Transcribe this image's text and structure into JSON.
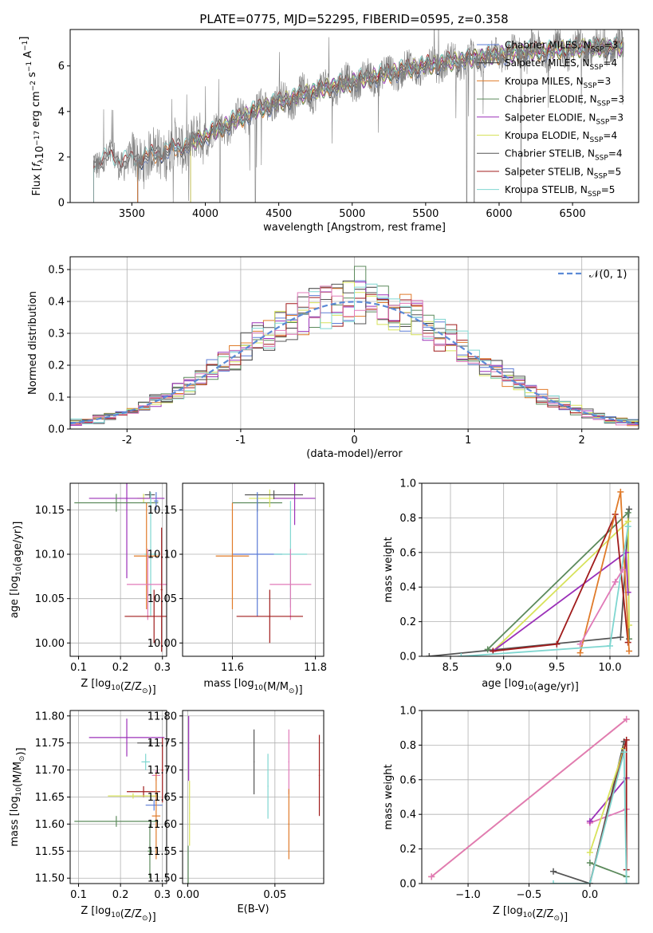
{
  "title": "PLATE=0775, MJD=52295, FIBERID=0595, z=0.358",
  "colors": {
    "chabrier_miles": "#5b7bd6",
    "salpeter_miles": "#3a3a3a",
    "kroupa_miles": "#e07b2a",
    "chabrier_elodie": "#5c8a5c",
    "salpeter_elodie": "#9b30b8",
    "kroupa_elodie": "#d7e25a",
    "chabrier_stelib": "#555555",
    "salpeter_stelib": "#a01b1b",
    "kroupa_stelib": "#7fd6d0",
    "pink": "#e07ab8",
    "data": "#808080"
  },
  "chart_data": [
    {
      "id": "spectrum",
      "type": "line",
      "xlabel": "wavelength [Angstrom, rest frame]",
      "ylabel": "Flux [f_λ 10^-17 erg cm^-2 s^-1 A^-1]",
      "xlim": [
        3080,
        6950
      ],
      "ylim": [
        0,
        7.6
      ],
      "xticks": [
        3500,
        4000,
        4500,
        5000,
        5500,
        6000,
        6500
      ],
      "yticks": [
        0,
        2,
        4,
        6
      ],
      "legend_position": "top-right",
      "legend": [
        {
          "label": "Chabrier MILES, N_SSP=3",
          "color_key": "chabrier_miles"
        },
        {
          "label": "Salpeter MILES, N_SSP=4",
          "color_key": "salpeter_miles"
        },
        {
          "label": "Kroupa MILES, N_SSP=3",
          "color_key": "kroupa_miles"
        },
        {
          "label": "Chabrier ELODIE, N_SSP=3",
          "color_key": "chabrier_elodie"
        },
        {
          "label": "Salpeter ELODIE, N_SSP=3",
          "color_key": "salpeter_elodie"
        },
        {
          "label": "Kroupa ELODIE, N_SSP=4",
          "color_key": "kroupa_elodie"
        },
        {
          "label": "Chabrier STELIB, N_SSP=4",
          "color_key": "chabrier_stelib"
        },
        {
          "label": "Salpeter STELIB, N_SSP=5",
          "color_key": "salpeter_stelib"
        },
        {
          "label": "Kroupa STELIB, N_SSP=5",
          "color_key": "kroupa_stelib"
        }
      ],
      "continuum": [
        [
          3240,
          1.7
        ],
        [
          3300,
          1.9
        ],
        [
          3400,
          1.85
        ],
        [
          3500,
          1.8
        ],
        [
          3700,
          2.2
        ],
        [
          3900,
          2.6
        ],
        [
          4000,
          2.9
        ],
        [
          4200,
          3.6
        ],
        [
          4400,
          4.2
        ],
        [
          4600,
          4.6
        ],
        [
          4800,
          5.0
        ],
        [
          5000,
          5.3
        ],
        [
          5200,
          5.6
        ],
        [
          5400,
          5.9
        ],
        [
          5600,
          6.1
        ],
        [
          5800,
          6.3
        ],
        [
          6000,
          6.5
        ],
        [
          6200,
          6.6
        ],
        [
          6400,
          6.7
        ],
        [
          6600,
          6.8
        ],
        [
          6800,
          6.8
        ]
      ],
      "model_ranges": [
        {
          "color_key": "chabrier_miles",
          "start": 3540
        },
        {
          "color_key": "salpeter_miles",
          "start": 3540
        },
        {
          "color_key": "kroupa_miles",
          "start": 3540
        },
        {
          "color_key": "chabrier_elodie",
          "start": 3900
        },
        {
          "color_key": "salpeter_elodie",
          "start": 3900
        },
        {
          "color_key": "kroupa_elodie",
          "start": 3900
        },
        {
          "color_key": "chabrier_stelib",
          "start": 3240
        },
        {
          "color_key": "salpeter_stelib",
          "start": 3240
        },
        {
          "color_key": "kroupa_stelib",
          "start": 3240
        }
      ],
      "deep_absorptions": [
        4100,
        4340,
        5780,
        5830,
        6150
      ]
    },
    {
      "id": "residuals",
      "type": "histogram",
      "xlabel": "(data-model)/error",
      "ylabel": "Normed distribution",
      "xlim": [
        -2.5,
        2.5
      ],
      "ylim": [
        0,
        0.54
      ],
      "xticks": [
        -2,
        -1,
        0,
        1,
        2
      ],
      "yticks": [
        0,
        0.1,
        0.2,
        0.3,
        0.4,
        0.5
      ],
      "grid": true,
      "legend_position": "top-right",
      "reference_label": "𝒩(0, 1)",
      "bin_width": 0.1,
      "bin_start": -2.5
    },
    {
      "id": "age_vs_Z",
      "type": "errorbar",
      "xlabel": "Z [log10(Z/Z⊙)]",
      "ylabel": "age [log10(age/yr)]",
      "xlim": [
        0.08,
        0.31
      ],
      "ylim": [
        9.985,
        10.18
      ],
      "xticks": [
        0.1,
        0.2,
        0.3
      ],
      "yticks": [
        10.0,
        10.05,
        10.1,
        10.15
      ],
      "grid": true,
      "points": [
        {
          "x": 0.255,
          "xerr": 0.015,
          "y": 10.163,
          "yerr": 0.005,
          "color_key": "kroupa_elodie"
        },
        {
          "x": 0.27,
          "xerr": 0.012,
          "y": 10.167,
          "yerr": 0.004,
          "color_key": "chabrier_stelib"
        },
        {
          "x": 0.215,
          "xerr": 0.09,
          "y": 10.163,
          "yerr": 0.09,
          "color_key": "salpeter_elodie"
        },
        {
          "x": 0.19,
          "xerr": 0.1,
          "y": 10.158,
          "yerr": 0.01,
          "color_key": "chabrier_elodie"
        },
        {
          "x": 0.272,
          "xerr": 0.015,
          "y": 10.1,
          "yerr": 0.07,
          "color_key": "kroupa_stelib"
        },
        {
          "x": 0.262,
          "xerr": 0.03,
          "y": 10.098,
          "yerr": 0.06,
          "color_key": "kroupa_miles"
        },
        {
          "x": 0.265,
          "xerr": 0.05,
          "y": 10.066,
          "yerr": 0.04,
          "color_key": "pink"
        },
        {
          "x": 0.28,
          "xerr": 0.07,
          "y": 10.03,
          "yerr": 0.03,
          "color_key": "salpeter_stelib"
        },
        {
          "x": 0.285,
          "xerr": 0.005,
          "y": 10.16,
          "yerr": 0.01,
          "color_key": "chabrier_miles"
        },
        {
          "x": 0.298,
          "xerr": 0.002,
          "y": 10.06,
          "yerr": 0.07,
          "color_key": "salpeter_stelib"
        }
      ]
    },
    {
      "id": "age_vs_mass",
      "type": "errorbar",
      "xlabel": "mass [log10(M/M⊙)]",
      "ylabel": "",
      "xlim": [
        11.48,
        11.82
      ],
      "ylim": [
        9.985,
        10.18
      ],
      "xticks": [
        11.6,
        11.8
      ],
      "yticks": [
        10.0,
        10.05,
        10.1,
        10.15
      ],
      "grid": true,
      "points": [
        {
          "x": 11.66,
          "xerr": 0.06,
          "y": 10.158,
          "yerr": 0.01,
          "color_key": "chabrier_elodie"
        },
        {
          "x": 11.69,
          "xerr": 0.05,
          "y": 10.163,
          "yerr": 0.01,
          "color_key": "kroupa_elodie"
        },
        {
          "x": 11.75,
          "xerr": 0.05,
          "y": 10.163,
          "yerr": 0.03,
          "color_key": "salpeter_elodie"
        },
        {
          "x": 11.7,
          "xerr": 0.07,
          "y": 10.167,
          "yerr": 0.005,
          "color_key": "chabrier_stelib"
        },
        {
          "x": 11.66,
          "xerr": 0.06,
          "y": 10.1,
          "yerr": 0.07,
          "color_key": "chabrier_miles"
        },
        {
          "x": 11.6,
          "xerr": 0.04,
          "y": 10.098,
          "yerr": 0.06,
          "color_key": "kroupa_miles"
        },
        {
          "x": 11.74,
          "xerr": 0.04,
          "y": 10.1,
          "yerr": 0.06,
          "color_key": "kroupa_stelib"
        },
        {
          "x": 11.74,
          "xerr": 0.05,
          "y": 10.066,
          "yerr": 0.04,
          "color_key": "pink"
        },
        {
          "x": 11.69,
          "xerr": 0.08,
          "y": 10.03,
          "yerr": 0.03,
          "color_key": "salpeter_stelib"
        }
      ]
    },
    {
      "id": "weight_vs_age",
      "type": "line",
      "xlabel": "age [log10(age/yr)]",
      "ylabel": "mass weight",
      "xlim": [
        8.23,
        10.27
      ],
      "ylim": [
        0,
        1
      ],
      "xticks": [
        8.5,
        9.0,
        9.5,
        10.0
      ],
      "yticks": [
        0,
        0.2,
        0.4,
        0.6,
        0.8,
        1.0
      ],
      "grid": true,
      "series": [
        {
          "color_key": "chabrier_stelib",
          "x": [
            8.3,
            10.1,
            10.18
          ],
          "y": [
            0.0,
            0.11,
            0.85
          ]
        },
        {
          "color_key": "chabrier_elodie",
          "x": [
            8.85,
            10.17,
            10.18
          ],
          "y": [
            0.04,
            0.83,
            0.1
          ]
        },
        {
          "color_key": "kroupa_elodie",
          "x": [
            8.9,
            10.17,
            10.18
          ],
          "y": [
            0.03,
            0.78,
            0.18
          ]
        },
        {
          "color_key": "salpeter_elodie",
          "x": [
            8.9,
            10.15,
            10.17
          ],
          "y": [
            0.03,
            0.6,
            0.37
          ]
        },
        {
          "color_key": "salpeter_stelib",
          "x": [
            8.9,
            9.5,
            10.05,
            10.17
          ],
          "y": [
            0.03,
            0.07,
            0.82,
            0.08
          ]
        },
        {
          "color_key": "kroupa_miles",
          "x": [
            9.72,
            10.1,
            10.18
          ],
          "y": [
            0.02,
            0.95,
            0.03
          ]
        },
        {
          "color_key": "kroupa_stelib",
          "x": [
            8.6,
            10.0,
            10.17
          ],
          "y": [
            0.0,
            0.06,
            0.75
          ]
        },
        {
          "color_key": "pink",
          "x": [
            9.72,
            10.05,
            10.12
          ],
          "y": [
            0.07,
            0.43,
            0.5
          ]
        }
      ]
    },
    {
      "id": "mass_vs_Z",
      "type": "errorbar",
      "xlabel": "Z [log10(Z/Z⊙)]",
      "ylabel": "mass [log10(M/M⊙)]",
      "xlim": [
        0.08,
        0.31
      ],
      "ylim": [
        11.49,
        11.81
      ],
      "xticks": [
        0.1,
        0.2,
        0.3
      ],
      "yticks": [
        11.5,
        11.55,
        11.6,
        11.65,
        11.7,
        11.75,
        11.8
      ],
      "grid": true,
      "points": [
        {
          "x": 0.215,
          "xerr": 0.09,
          "y": 11.76,
          "yerr": 0.035,
          "color_key": "salpeter_elodie"
        },
        {
          "x": 0.27,
          "xerr": 0.03,
          "y": 11.75,
          "yerr": 0.005,
          "color_key": "chabrier_stelib"
        },
        {
          "x": 0.26,
          "xerr": 0.01,
          "y": 11.715,
          "yerr": 0.015,
          "color_key": "kroupa_stelib"
        },
        {
          "x": 0.285,
          "xerr": 0.01,
          "y": 11.69,
          "yerr": 0.01,
          "color_key": "pink"
        },
        {
          "x": 0.255,
          "xerr": 0.04,
          "y": 11.66,
          "yerr": 0.01,
          "color_key": "salpeter_stelib"
        },
        {
          "x": 0.23,
          "xerr": 0.06,
          "y": 11.652,
          "yerr": 0.005,
          "color_key": "kroupa_elodie"
        },
        {
          "x": 0.28,
          "xerr": 0.02,
          "y": 11.635,
          "yerr": 0.01,
          "color_key": "chabrier_miles"
        },
        {
          "x": 0.285,
          "xerr": 0.01,
          "y": 11.615,
          "yerr": 0.08,
          "color_key": "kroupa_miles"
        },
        {
          "x": 0.19,
          "xerr": 0.1,
          "y": 11.605,
          "yerr": 0.01,
          "color_key": "chabrier_elodie"
        },
        {
          "x": 0.27,
          "xerr": 0.005,
          "y": 11.55,
          "yerr": 0.05,
          "color_key": "chabrier_elodie"
        },
        {
          "x": 0.3,
          "xerr": 0.002,
          "y": 11.7,
          "yerr": 0.06,
          "color_key": "salpeter_stelib"
        }
      ]
    },
    {
      "id": "mass_vs_ebv",
      "type": "errorbar",
      "xlabel": "E(B-V)",
      "ylabel": "",
      "xlim": [
        -0.003,
        0.078
      ],
      "ylim": [
        11.49,
        11.81
      ],
      "xticks": [
        0.0,
        0.05
      ],
      "yticks": [
        11.5,
        11.55,
        11.6,
        11.65,
        11.7,
        11.75,
        11.8
      ],
      "grid": true,
      "points": [
        {
          "x": 0.0005,
          "xerr": 0.0002,
          "y": 11.74,
          "yerr": 0.06,
          "color_key": "salpeter_elodie"
        },
        {
          "x": 0.001,
          "xerr": 0.0002,
          "y": 11.62,
          "yerr": 0.06,
          "color_key": "kroupa_elodie"
        },
        {
          "x": 0.0002,
          "xerr": 0.0002,
          "y": 11.52,
          "yerr": 0.04,
          "color_key": "chabrier_elodie"
        },
        {
          "x": 0.038,
          "xerr": 0.0003,
          "y": 11.715,
          "yerr": 0.06,
          "color_key": "chabrier_stelib"
        },
        {
          "x": 0.046,
          "xerr": 0.0003,
          "y": 11.67,
          "yerr": 0.06,
          "color_key": "kroupa_stelib"
        },
        {
          "x": 0.058,
          "xerr": 0.0003,
          "y": 11.715,
          "yerr": 0.06,
          "color_key": "pink"
        },
        {
          "x": 0.058,
          "xerr": 0.0003,
          "y": 11.6,
          "yerr": 0.065,
          "color_key": "kroupa_miles"
        },
        {
          "x": 0.0755,
          "xerr": 0.0003,
          "y": 11.69,
          "yerr": 0.075,
          "color_key": "salpeter_stelib"
        }
      ]
    },
    {
      "id": "weight_vs_Z",
      "type": "line",
      "xlabel": "Z [log10(Z/Z⊙)]",
      "ylabel": "mass weight",
      "xlim": [
        -1.38,
        0.4
      ],
      "ylim": [
        0,
        1
      ],
      "xticks": [
        -1.0,
        -0.5,
        0.0
      ],
      "yticks": [
        0,
        0.2,
        0.4,
        0.6,
        0.8,
        1.0
      ],
      "grid": true,
      "series": [
        {
          "color_key": "kroupa_miles",
          "x": [
            -1.3,
            0.3
          ],
          "y": [
            0.04,
            0.95
          ]
        },
        {
          "color_key": "pink",
          "x": [
            -1.3,
            0.3
          ],
          "y": [
            0.04,
            0.95
          ]
        },
        {
          "color_key": "pink",
          "x": [
            0.0,
            0.3
          ],
          "y": [
            0.35,
            0.43
          ]
        },
        {
          "color_key": "salpeter_elodie",
          "x": [
            0.0,
            0.3
          ],
          "y": [
            0.36,
            0.61
          ]
        },
        {
          "color_key": "chabrier_stelib",
          "x": [
            -0.3,
            0.0,
            0.28
          ],
          "y": [
            0.07,
            0.0,
            0.82
          ]
        },
        {
          "color_key": "chabrier_elodie",
          "x": [
            0.0,
            0.3
          ],
          "y": [
            0.12,
            0.04
          ]
        },
        {
          "color_key": "kroupa_elodie",
          "x": [
            0.0,
            0.28
          ],
          "y": [
            0.18,
            0.78
          ]
        },
        {
          "color_key": "salpeter_stelib",
          "x": [
            0.0,
            0.3,
            0.3
          ],
          "y": [
            0.0,
            0.83,
            0.08
          ]
        },
        {
          "color_key": "kroupa_stelib",
          "x": [
            -0.3,
            0.0,
            0.28,
            0.3
          ],
          "y": [
            0.0,
            0.0,
            0.76,
            0.0
          ]
        }
      ]
    }
  ]
}
